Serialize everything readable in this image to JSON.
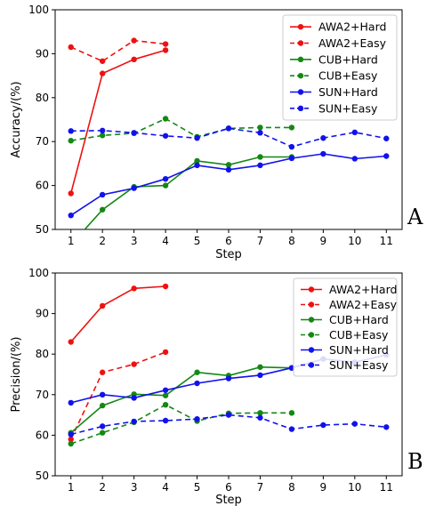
{
  "chart_data": [
    {
      "type": "line",
      "panel_label": "A",
      "xlabel": "Step",
      "ylabel": "Accuracy/(%)",
      "xlim": [
        0.5,
        11.5
      ],
      "ylim": [
        50,
        100
      ],
      "xticks": [
        1,
        2,
        3,
        4,
        5,
        6,
        7,
        8,
        9,
        10,
        11
      ],
      "yticks": [
        50,
        60,
        70,
        80,
        90,
        100
      ],
      "legend_position": "top-right",
      "grid": false,
      "series": [
        {
          "name": "AWA2+Hard",
          "color": "#ee1111",
          "dash": false,
          "x": [
            1,
            2,
            3,
            4
          ],
          "y": [
            58.2,
            85.5,
            88.7,
            90.8
          ]
        },
        {
          "name": "AWA2+Easy",
          "color": "#ee1111",
          "dash": true,
          "x": [
            1,
            2,
            3,
            4
          ],
          "y": [
            91.5,
            88.3,
            93.0,
            92.2
          ]
        },
        {
          "name": "CUB+Hard",
          "color": "#138813",
          "dash": false,
          "x": [
            1,
            2,
            3,
            4,
            5,
            6,
            7,
            8
          ],
          "y": [
            46.5,
            54.5,
            59.7,
            60.0,
            65.6,
            64.7,
            66.5,
            66.5
          ]
        },
        {
          "name": "CUB+Easy",
          "color": "#138813",
          "dash": true,
          "x": [
            1,
            2,
            3,
            4,
            5,
            6,
            7,
            8
          ],
          "y": [
            70.2,
            71.4,
            71.9,
            75.2,
            71.1,
            73.0,
            73.2,
            73.2
          ]
        },
        {
          "name": "SUN+Hard",
          "color": "#1111ee",
          "dash": false,
          "x": [
            1,
            2,
            3,
            4,
            5,
            6,
            7,
            8,
            9,
            10,
            11
          ],
          "y": [
            53.2,
            57.9,
            59.4,
            61.5,
            64.6,
            63.6,
            64.6,
            66.2,
            67.2,
            66.1,
            66.7
          ]
        },
        {
          "name": "SUN+Easy",
          "color": "#1111ee",
          "dash": true,
          "x": [
            1,
            2,
            3,
            4,
            5,
            6,
            7,
            8,
            9,
            10,
            11
          ],
          "y": [
            72.4,
            72.5,
            72.0,
            71.3,
            70.8,
            73.0,
            72.0,
            68.8,
            70.8,
            72.1,
            70.7
          ]
        }
      ]
    },
    {
      "type": "line",
      "panel_label": "B",
      "xlabel": "Step",
      "ylabel": "Precision/(%)",
      "xlim": [
        0.5,
        11.5
      ],
      "ylim": [
        50,
        100
      ],
      "xticks": [
        1,
        2,
        3,
        4,
        5,
        6,
        7,
        8,
        9,
        10,
        11
      ],
      "yticks": [
        50,
        60,
        70,
        80,
        90,
        100
      ],
      "legend_position": "top-right",
      "grid": false,
      "series": [
        {
          "name": "AWA2+Hard",
          "color": "#ee1111",
          "dash": false,
          "x": [
            1,
            2,
            3,
            4
          ],
          "y": [
            83.0,
            91.9,
            96.2,
            96.7
          ]
        },
        {
          "name": "AWA2+Easy",
          "color": "#ee1111",
          "dash": true,
          "x": [
            1,
            2,
            3,
            4
          ],
          "y": [
            59.0,
            75.5,
            77.5,
            80.5
          ]
        },
        {
          "name": "CUB+Hard",
          "color": "#138813",
          "dash": false,
          "x": [
            1,
            2,
            3,
            4,
            5,
            6,
            7,
            8
          ],
          "y": [
            60.6,
            67.3,
            70.1,
            69.8,
            75.5,
            74.7,
            76.8,
            76.6
          ]
        },
        {
          "name": "CUB+Easy",
          "color": "#138813",
          "dash": true,
          "x": [
            1,
            2,
            3,
            4,
            5,
            6,
            7,
            8
          ],
          "y": [
            57.9,
            60.6,
            63.2,
            67.5,
            63.5,
            65.4,
            65.5,
            65.5
          ]
        },
        {
          "name": "SUN+Hard",
          "color": "#1111ee",
          "dash": false,
          "x": [
            1,
            2,
            3,
            4,
            5,
            6,
            7,
            8,
            9,
            10,
            11
          ],
          "y": [
            68.0,
            70.0,
            69.2,
            71.1,
            72.8,
            74.0,
            74.8,
            76.6,
            78.8,
            78.0,
            79.8
          ]
        },
        {
          "name": "SUN+Easy",
          "color": "#1111ee",
          "dash": true,
          "x": [
            1,
            2,
            3,
            4,
            5,
            6,
            7,
            8,
            9,
            10,
            11
          ],
          "y": [
            60.2,
            62.2,
            63.4,
            63.6,
            64.0,
            65.0,
            64.3,
            61.5,
            62.5,
            62.8,
            62.0
          ]
        }
      ]
    }
  ]
}
